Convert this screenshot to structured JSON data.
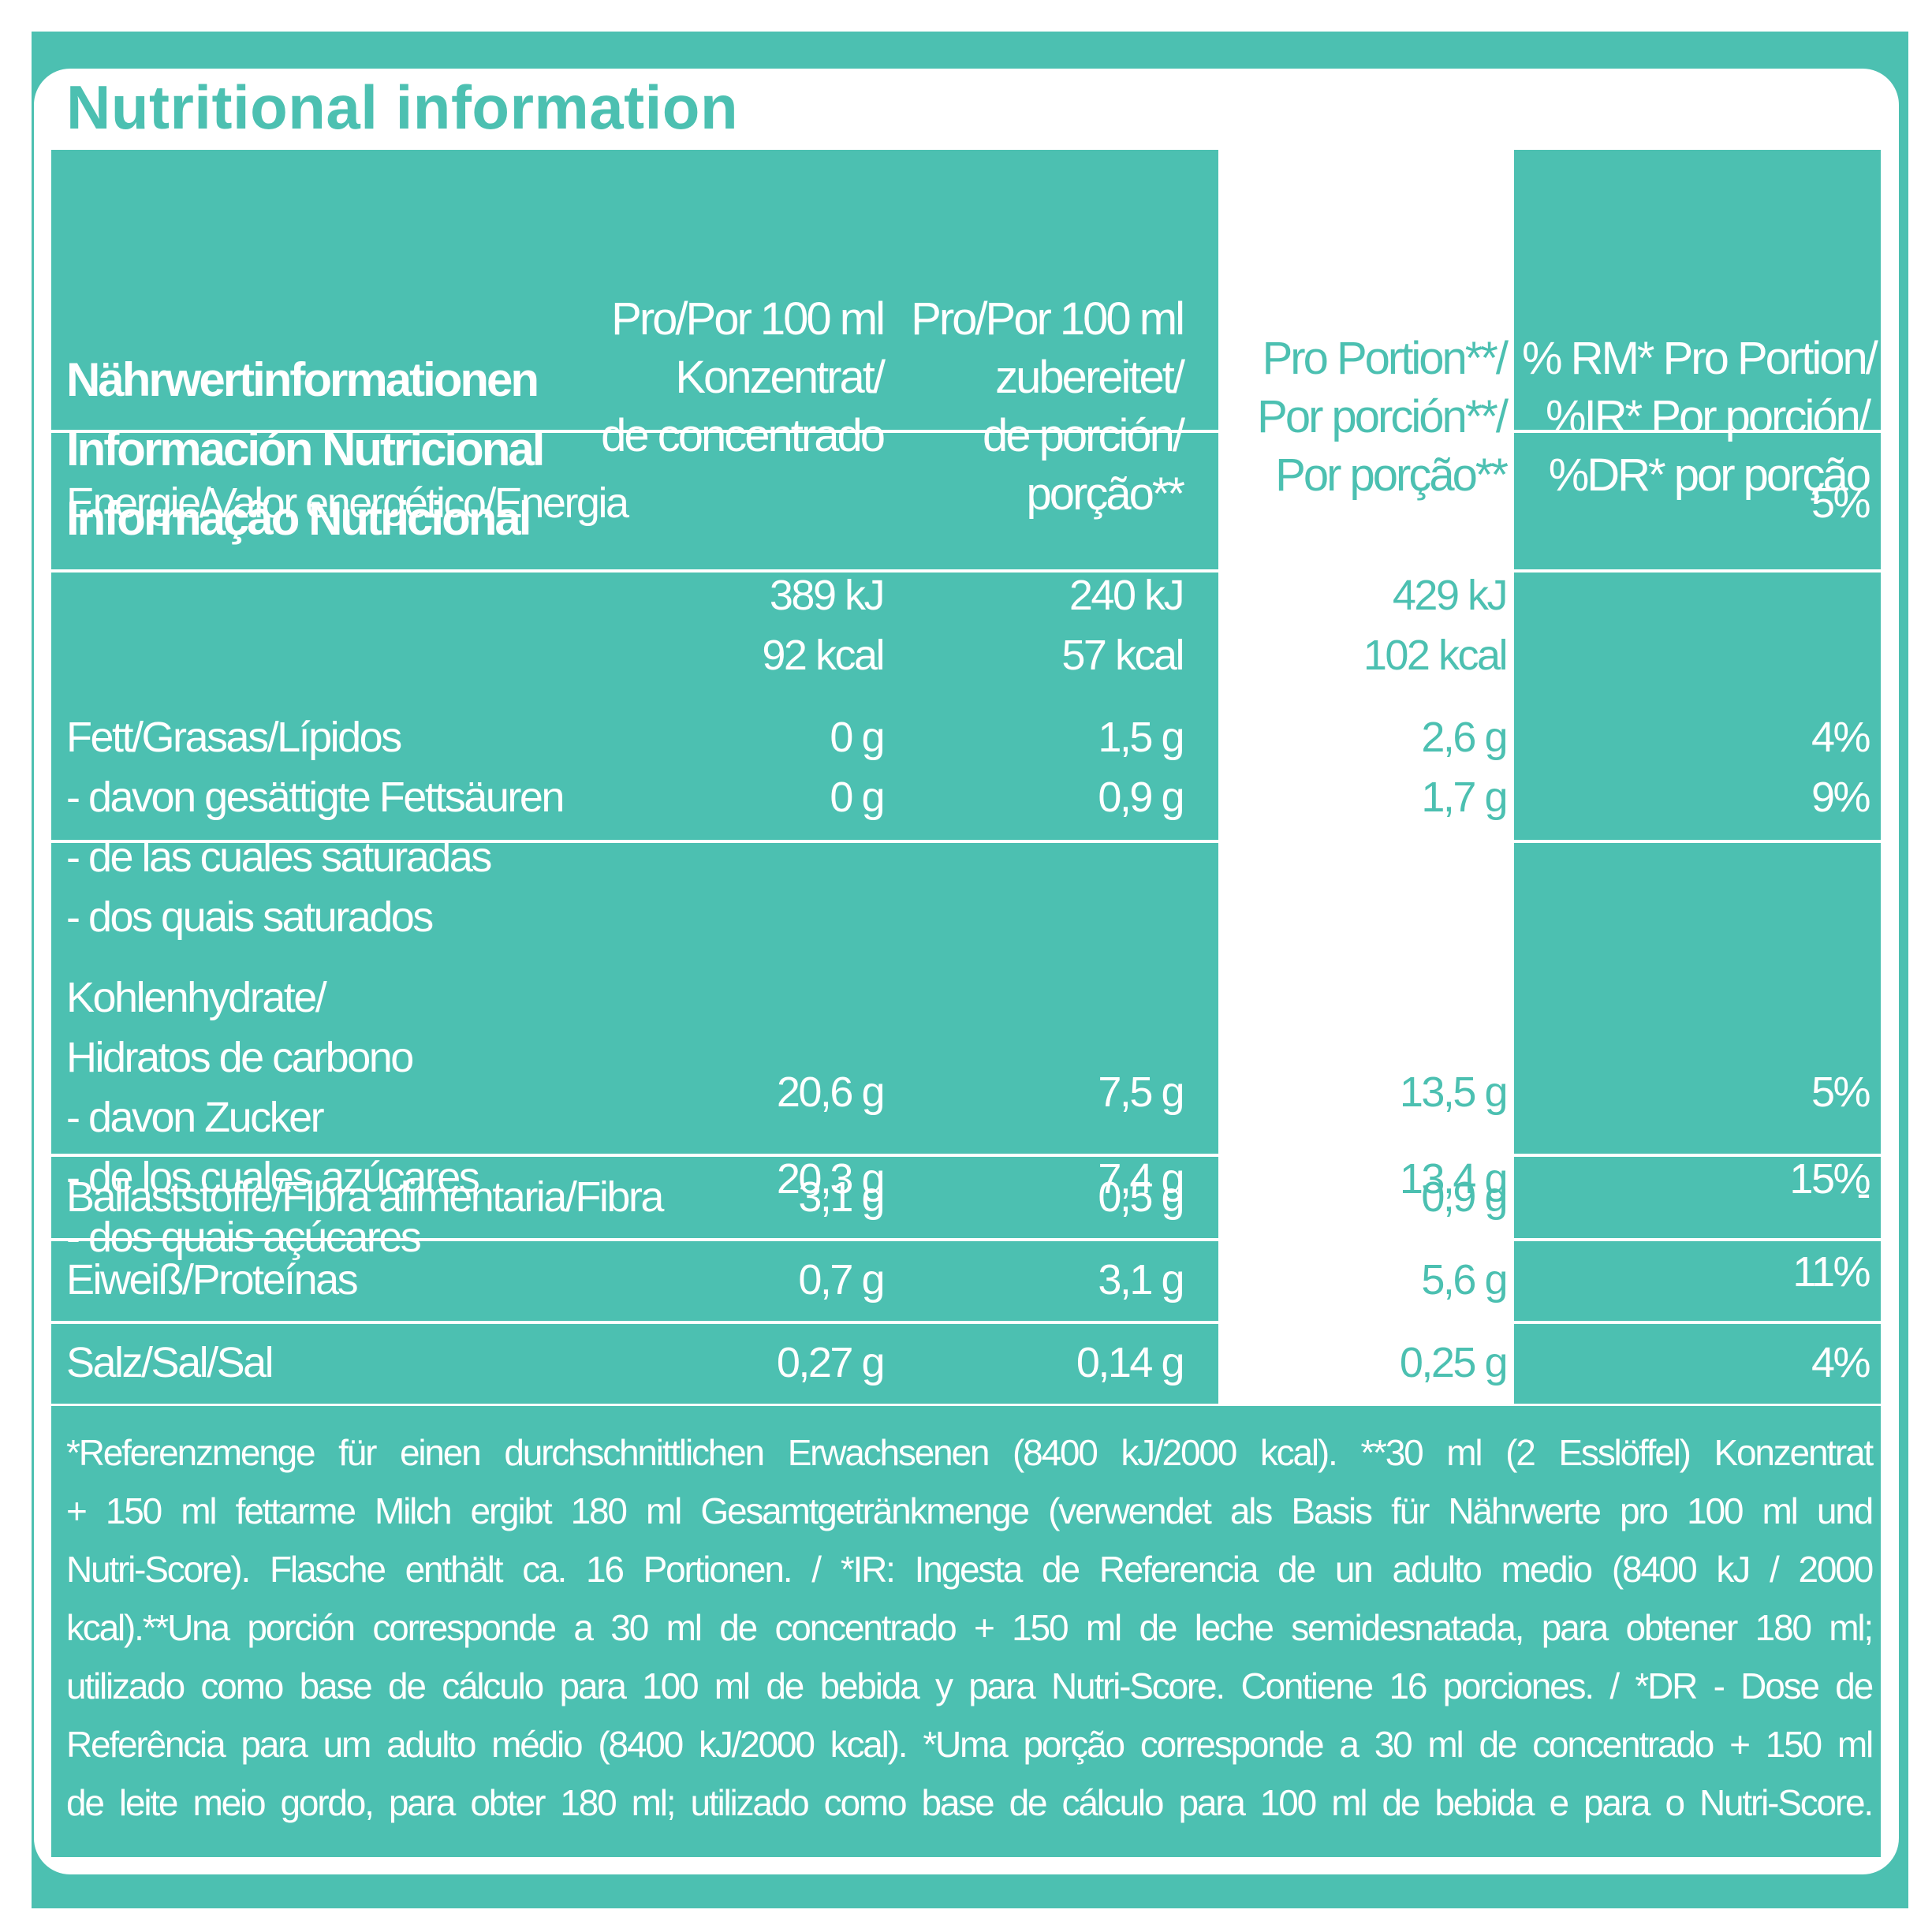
{
  "title": "Nutritional information",
  "colors": {
    "accent": "#4cc0b1",
    "background": "#ffffff"
  },
  "header": {
    "label": [
      "Nährwertinformationen",
      "Información Nutricional",
      "Informação Nutricional"
    ],
    "col1": [
      "Pro/Por 100 ml",
      "Konzentrat/",
      "de concentrado"
    ],
    "col2": [
      "Pro/Por 100 ml",
      "zubereitet/",
      "de porción/",
      "porção**"
    ],
    "col3": [
      "Pro Portion**/",
      "Por porción**/",
      "Por porção**"
    ],
    "col4": [
      "% RM* Pro Portion/",
      "%IR* Por porción/",
      "%DR* por porção"
    ]
  },
  "rows": {
    "energy": {
      "label": "Energie/Valor energético/Energia",
      "c1": [
        "389 kJ",
        "92 kcal"
      ],
      "c2": [
        "240 kJ",
        "57 kcal"
      ],
      "c3": [
        "429 kJ",
        "102 kcal"
      ],
      "c4": "5%"
    },
    "fat": {
      "label": [
        "Fett/Grasas/Lípidos",
        "- davon gesättigte Fettsäuren",
        "- de las cuales saturadas",
        "- dos quais saturados"
      ],
      "c1": [
        "0 g",
        "0 g"
      ],
      "c2": [
        "1,5 g",
        "0,9 g"
      ],
      "c3": [
        "2,6 g",
        "1,7 g"
      ],
      "c4": [
        "4%",
        "9%"
      ]
    },
    "carbs": {
      "label": [
        "Kohlenhydrate/",
        "Hidratos de carbono",
        "- davon Zucker",
        "- de los cuales azúcares",
        "- dos quais açúcares"
      ],
      "c1": [
        "20,6 g",
        "20,3 g"
      ],
      "c2": [
        "7,5 g",
        "7,4 g"
      ],
      "c3": [
        "13,5 g",
        "13,4 g"
      ],
      "c4": [
        "5%",
        "15%"
      ]
    },
    "fibre": {
      "label": "Ballaststoffe/Fibra alimentaria/Fibra",
      "c1": "3,1 g",
      "c2": "0,5 g",
      "c3": "0,9 g",
      "c4": "-"
    },
    "protein": {
      "label": "Eiweiß/Proteínas",
      "c1": "0,7 g",
      "c2": "3,1 g",
      "c3": "5,6 g",
      "c4": "11%"
    },
    "salt": {
      "label": "Salz/Sal/Sal",
      "c1": "0,27 g",
      "c2": "0,14 g",
      "c3": "0,25 g",
      "c4": "4%"
    }
  },
  "footnote": [
    "*Referenzmenge für einen durchschnittlichen Erwachsenen (8400 kJ/2000 kcal). **30 ml (2 Esslöffel) Konzentrat",
    "+ 150 ml fettarme Milch ergibt 180 ml Gesamtgetränkmenge (verwendet als Basis für Nährwerte pro 100 ml und",
    "Nutri-Score). Flasche enthält ca. 16 Portionen. / *IR: Ingesta de Referencia de un adulto medio (8400 kJ / 2000",
    "kcal).**Una porción corresponde a 30 ml de concentrado + 150 ml de leche semidesnatada, para obtener 180 ml;",
    "utilizado como base de cálculo para 100 ml de bebida y para Nutri-Score. Contiene 16 porciones.  / *DR - Dose de",
    "Referência para um adulto médio (8400 kJ/2000 kcal). *Uma porção corresponde a 30 ml de concentrado + 150 ml",
    "de leite meio gordo, para obter 180 ml; utilizado como base de cálculo para 100 ml de bebida e para o Nutri-Score."
  ]
}
